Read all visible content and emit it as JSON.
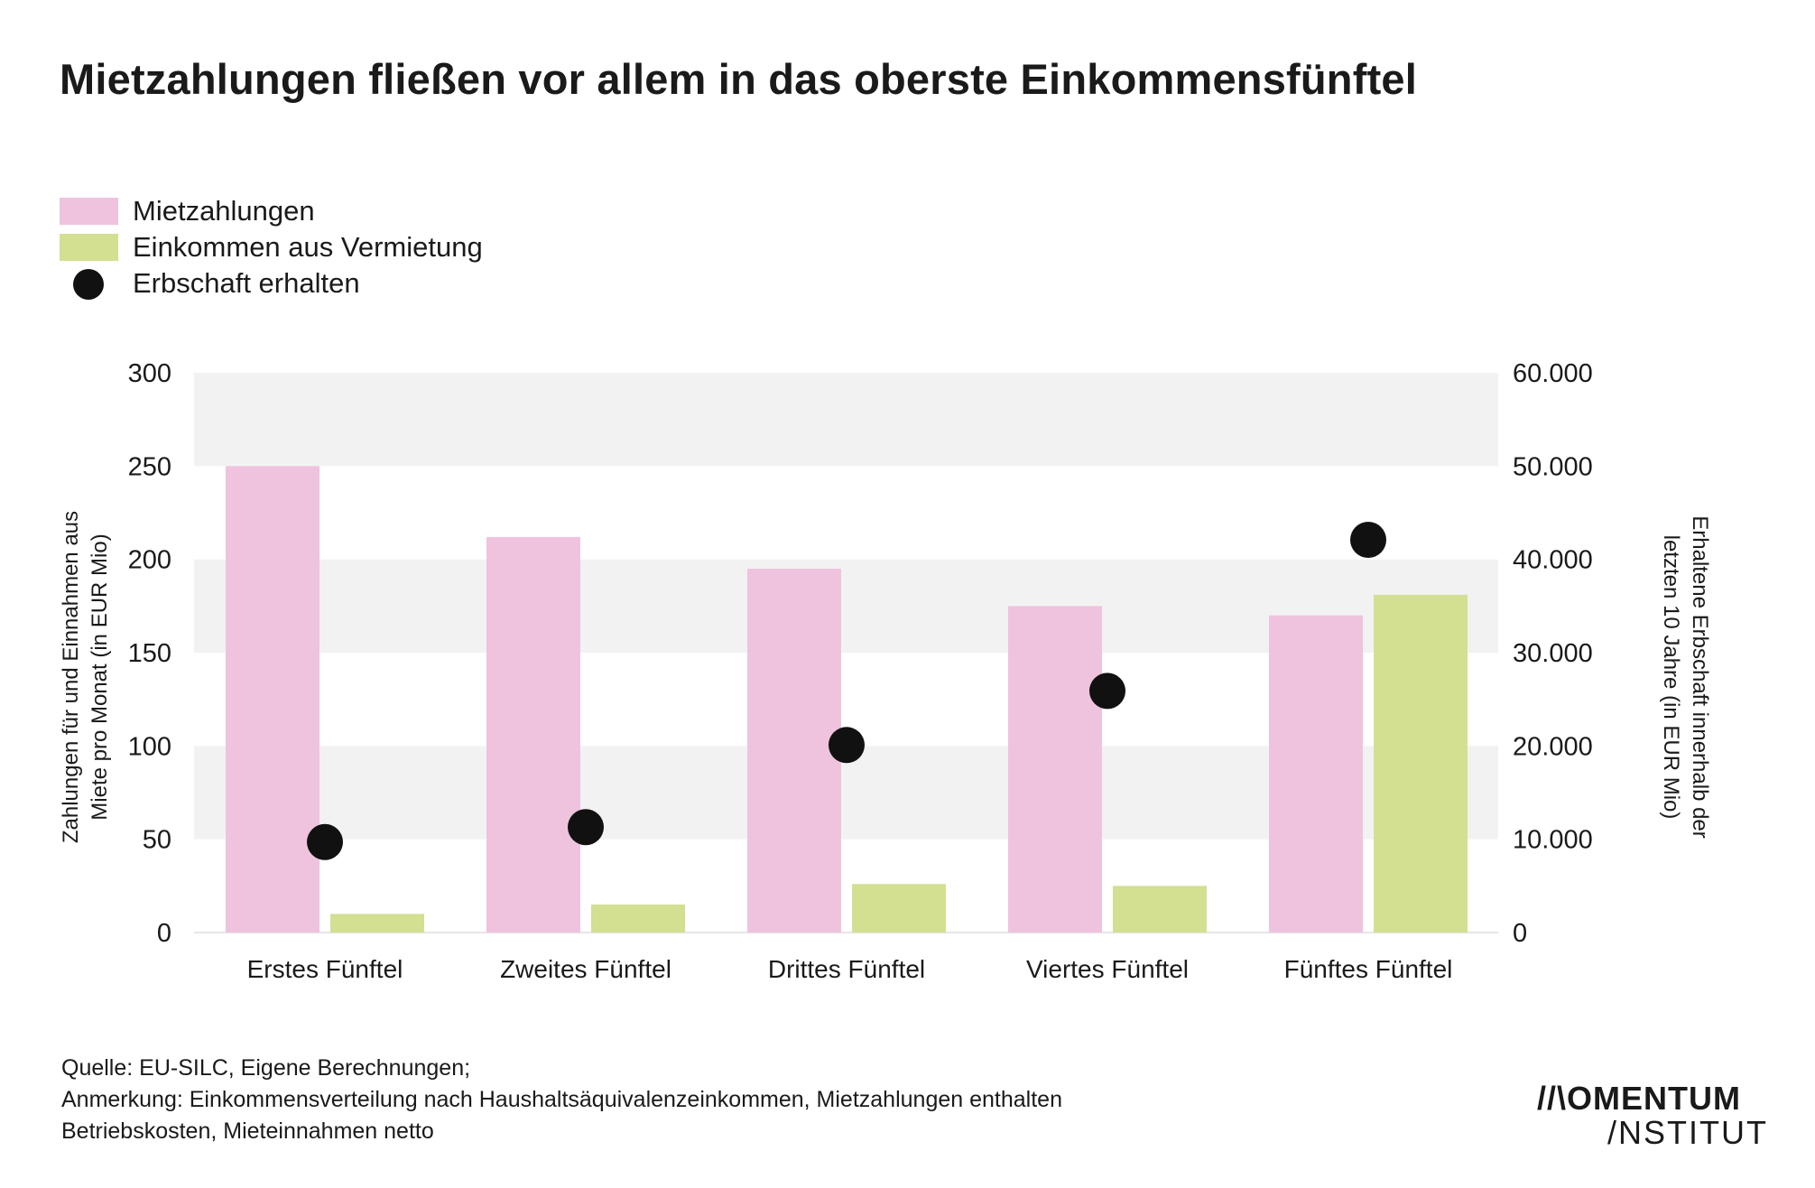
{
  "title": "Mietzahlungen fließen vor allem in das oberste Einkommensfünftel",
  "legend": [
    {
      "label": "Mietzahlungen",
      "color": "#efc3de",
      "shape": "bar"
    },
    {
      "label": "Einkommen aus Vermietung",
      "color": "#d3df91",
      "shape": "bar"
    },
    {
      "label": "Erbschaft erhalten",
      "color": "#111111",
      "shape": "dot"
    }
  ],
  "chart_data": {
    "type": "bar",
    "categories": [
      "Erstes Fünftel",
      "Zweites Fünftel",
      "Drittes Fünftel",
      "Viertes Fünftel",
      "Fünftes Fünftel"
    ],
    "series": [
      {
        "name": "Mietzahlungen",
        "axis": "left",
        "type": "bar",
        "color": "#efc3de",
        "values": [
          250,
          212,
          195,
          175,
          170
        ]
      },
      {
        "name": "Einkommen aus Vermietung",
        "axis": "left",
        "type": "bar",
        "color": "#d3df91",
        "values": [
          10,
          15,
          26,
          25,
          181
        ]
      },
      {
        "name": "Erbschaft erhalten",
        "axis": "right",
        "type": "scatter",
        "color": "#111111",
        "values": [
          9700,
          11300,
          20100,
          25900,
          42100
        ]
      }
    ],
    "ylabel": "Zahlungen für und Einnahmen aus Miete pro Monat (in EUR Mio)",
    "y2label": "Erhaltene Erbschaft innerhalb der letzten 10 Jahre (in EUR Mio)",
    "ylim": [
      0,
      300
    ],
    "y2lim": [
      0,
      60000
    ],
    "yticks": [
      "0",
      "50",
      "100",
      "150",
      "200",
      "250",
      "300"
    ],
    "y2ticks": [
      "0",
      "10.000",
      "20.000",
      "30.000",
      "40.000",
      "50.000",
      "60.000"
    ],
    "grid": "alternating bands",
    "legend_position": "top-left"
  },
  "ylabel_lines": [
    "Zahlungen für und Einnahmen aus",
    "Miete pro Monat (in EUR Mio)"
  ],
  "y2label_lines": [
    "Erhaltene Erbschaft innerhalb der",
    "letzten 10 Jahre (in EUR Mio)"
  ],
  "footnote": {
    "line1": "Quelle: EU-SILC, Eigene Berechnungen;",
    "line2": "Anmerkung: Einkommensverteilung nach Haushaltsäquivalenzeinkommen, Mietzahlungen enthalten",
    "line3": "Betriebskosten, Mieteinnahmen netto"
  },
  "logo": {
    "line1": "//\\OMENTUM",
    "line2": "/NSTITUT"
  }
}
